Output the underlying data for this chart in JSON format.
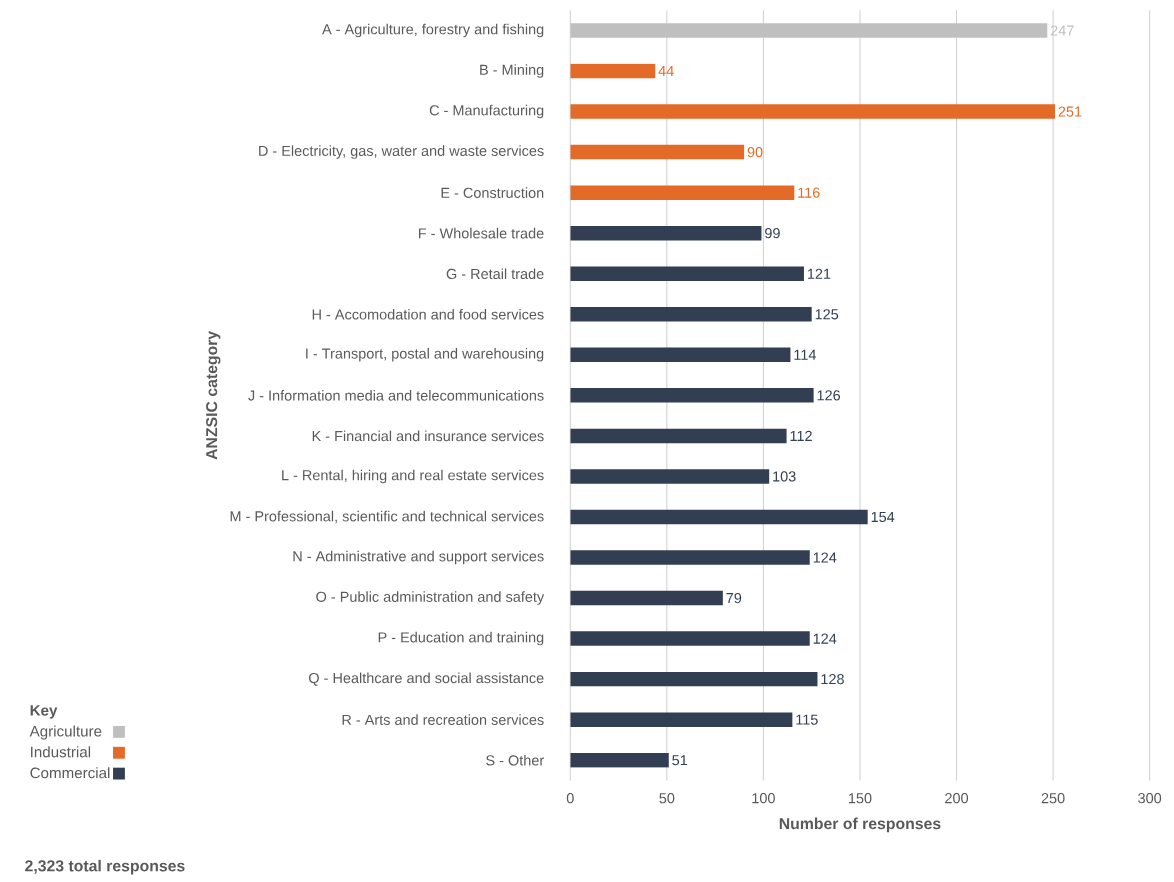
{
  "chart_data": {
    "type": "bar",
    "orientation": "horizontal",
    "categories": [
      "A - Agriculture, forestry and fishing",
      "B - Mining",
      "C - Manufacturing",
      "D - Electricity, gas, water and waste services",
      "E - Construction",
      "F - Wholesale trade",
      "G - Retail trade",
      "H - Accomodation and food services",
      "I - Transport, postal and warehousing",
      "J - Information media and telecommunications",
      "K - Financial and insurance services",
      "L - Rental, hiring and real estate services",
      "M - Professional, scientific and technical services",
      "N - Administrative and support services",
      "O - Public administration and safety",
      "P - Education and training",
      "Q - Healthcare and social assistance",
      "R - Arts and recreation services",
      "S - Other"
    ],
    "series": [
      {
        "name": "Agriculture",
        "color": "#bfbfbf",
        "values": [
          247,
          null,
          null,
          null,
          null,
          null,
          null,
          null,
          null,
          null,
          null,
          null,
          null,
          null,
          null,
          null,
          null,
          null,
          null
        ]
      },
      {
        "name": "Industrial",
        "color": "#e36a27",
        "values": [
          null,
          44,
          251,
          90,
          116,
          null,
          null,
          null,
          null,
          null,
          null,
          null,
          null,
          null,
          null,
          null,
          null,
          null,
          null
        ]
      },
      {
        "name": "Commercial",
        "color": "#323f52",
        "values": [
          null,
          null,
          null,
          null,
          null,
          99,
          121,
          125,
          114,
          126,
          112,
          103,
          154,
          124,
          79,
          124,
          128,
          115,
          51
        ]
      }
    ],
    "xlim": [
      0,
      300
    ],
    "xticks": [
      0,
      50,
      100,
      150,
      200,
      250,
      300
    ],
    "xlabel": "Number of responses",
    "ylabel": "ANZSIC category",
    "legend_title": "Key",
    "legend": "bottom left",
    "grid": "x",
    "data_labels": true,
    "annotations": [
      "2,323 total responses"
    ]
  }
}
